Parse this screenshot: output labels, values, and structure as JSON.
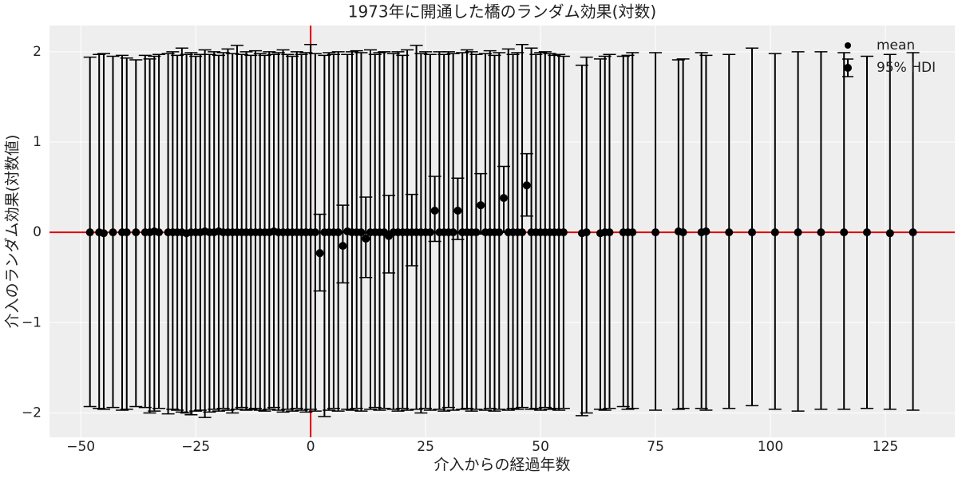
{
  "chart_data": {
    "type": "errorbar",
    "title": "1973年に開通した橋のランダム効果(対数)",
    "xlabel": "介入からの経過年数",
    "ylabel": "介入のランダム効果(対数値)",
    "xlim": [
      -56.8,
      140.1
    ],
    "ylim": [
      -2.27,
      2.29
    ],
    "xticks": [
      {
        "value": -50,
        "label": "−50"
      },
      {
        "value": -25,
        "label": "−25"
      },
      0,
      25,
      50,
      75,
      100,
      125
    ],
    "yticks": [
      {
        "value": -2,
        "label": "−2"
      },
      {
        "value": -1,
        "label": "−1"
      },
      0,
      1,
      2
    ],
    "grid": true,
    "legend": "upper right",
    "reference_lines": {
      "color": "#e00000",
      "x": 0,
      "y": 0
    },
    "x": [
      -48,
      -46,
      -45,
      -43,
      -41,
      -40,
      -38,
      -36,
      -35,
      -34,
      -33,
      -31,
      -30,
      -29,
      -28,
      -27,
      -26,
      -25,
      -24,
      -23,
      -22,
      -21,
      -20,
      -19,
      -18,
      -17,
      -16,
      -15,
      -14,
      -13,
      -12,
      -11,
      -10,
      -9,
      -8,
      -7,
      -6,
      -5,
      -4,
      -3,
      -2,
      -1,
      0,
      1,
      2,
      3,
      4,
      5,
      6,
      7,
      8,
      9,
      10,
      11,
      12,
      13,
      14,
      15,
      16,
      17,
      18,
      19,
      20,
      21,
      22,
      23,
      24,
      25,
      26,
      27,
      28,
      29,
      30,
      31,
      32,
      33,
      34,
      35,
      36,
      37,
      38,
      39,
      40,
      41,
      42,
      43,
      44,
      45,
      46,
      47,
      48,
      49,
      50,
      51,
      52,
      53,
      54,
      55,
      59,
      60,
      63,
      64,
      65,
      68,
      69,
      70,
      75,
      80,
      81,
      85,
      86,
      91,
      96,
      101,
      106,
      111,
      116,
      121,
      126,
      131
    ],
    "series": [
      {
        "name": "mean",
        "color": "#000000",
        "values": [
          0,
          0,
          -0.01,
          0,
          0,
          0,
          0,
          0,
          0,
          0.01,
          0,
          0,
          0,
          0,
          0,
          -0.01,
          0,
          0,
          0,
          0.01,
          0,
          0,
          0.01,
          0,
          0,
          0,
          0,
          0,
          0,
          0,
          0,
          0,
          0,
          0,
          0.01,
          0,
          0,
          0,
          0,
          0,
          0,
          0,
          0,
          0,
          -0.23,
          0,
          0,
          0,
          0,
          -0.15,
          0.01,
          0,
          0,
          0,
          -0.07,
          0,
          0,
          0,
          0,
          -0.04,
          0,
          0,
          0,
          0,
          0,
          0,
          0,
          0,
          0,
          0.24,
          0,
          0,
          0,
          0,
          0.24,
          0,
          0,
          0,
          0,
          0.3,
          0,
          0,
          0,
          0,
          0.38,
          0,
          0,
          0,
          0,
          0.52,
          0,
          0,
          0,
          0,
          0,
          0,
          0,
          0,
          -0.01,
          0,
          -0.01,
          0,
          0,
          0,
          0,
          0,
          0,
          0.01,
          0,
          0,
          0.01,
          0,
          0,
          0,
          0,
          0,
          0,
          0,
          -0.01,
          0
        ]
      }
    ],
    "intervals": {
      "name": "95% HDI",
      "color": "#000000",
      "lower": [
        -1.93,
        -1.95,
        -1.96,
        -1.94,
        -1.97,
        -1.96,
        -1.93,
        -1.94,
        -2.0,
        -1.98,
        -1.95,
        -2.01,
        -1.96,
        -1.97,
        -1.99,
        -2.0,
        -2.02,
        -1.98,
        -1.97,
        -2.05,
        -1.99,
        -1.96,
        -1.98,
        -1.95,
        -1.97,
        -2.0,
        -1.96,
        -1.94,
        -1.97,
        -1.96,
        -1.95,
        -1.97,
        -1.98,
        -1.96,
        -1.94,
        -1.97,
        -1.99,
        -1.96,
        -1.98,
        -1.95,
        -1.97,
        -1.99,
        -1.96,
        -1.98,
        -0.65,
        -2.04,
        -1.97,
        -1.95,
        -1.98,
        -0.56,
        -1.96,
        -1.97,
        -1.95,
        -1.98,
        -0.5,
        -1.96,
        -1.94,
        -1.97,
        -1.95,
        -0.45,
        -1.96,
        -1.98,
        -1.95,
        -1.97,
        -0.37,
        -1.96,
        -2.0,
        -1.95,
        -1.97,
        -0.1,
        -1.96,
        -1.98,
        -1.94,
        -1.97,
        -0.08,
        -1.96,
        -1.95,
        -1.98,
        -1.96,
        -0.02,
        -1.97,
        -1.95,
        -1.98,
        -1.96,
        0,
        -1.97,
        -1.95,
        -1.96,
        -1.94,
        0.18,
        -1.96,
        -1.95,
        -1.97,
        -1.94,
        -1.96,
        -1.95,
        -1.97,
        -1.95,
        -2.03,
        -2.0,
        -1.96,
        -1.97,
        -1.95,
        -1.93,
        -1.96,
        -1.95,
        -1.97,
        -1.96,
        -1.95,
        -1.95,
        -1.97,
        -1.95,
        -1.92,
        -1.96,
        -1.98,
        -1.96,
        -1.96,
        -1.95,
        -1.96,
        -1.97
      ],
      "upper": [
        1.94,
        1.97,
        1.98,
        1.95,
        1.96,
        1.93,
        1.91,
        1.96,
        1.92,
        1.95,
        1.97,
        1.98,
        2.0,
        1.96,
        2.04,
        1.97,
        1.99,
        1.95,
        1.97,
        2.02,
        1.97,
        2.0,
        1.96,
        1.99,
        2.03,
        1.98,
        2.07,
        1.97,
        2.0,
        1.96,
        2.01,
        1.98,
        1.96,
        2.0,
        1.97,
        1.99,
        2.02,
        1.97,
        1.95,
        2.0,
        1.97,
        1.99,
        2.08,
        1.98,
        0.2,
        1.96,
        1.99,
        1.97,
        2.0,
        0.3,
        1.97,
        2.0,
        2.01,
        1.99,
        0.39,
        2.02,
        1.97,
        1.99,
        2.0,
        0.41,
        1.98,
        2.0,
        1.96,
        2.02,
        0.42,
        2.07,
        1.98,
        2.0,
        1.97,
        0.62,
        2.0,
        1.97,
        2.0,
        1.98,
        0.6,
        1.99,
        2.02,
        2.0,
        1.97,
        0.65,
        1.98,
        2.01,
        1.96,
        1.99,
        0.73,
        2.03,
        1.97,
        1.99,
        2.08,
        0.87,
        2.04,
        1.97,
        1.99,
        2.0,
        1.98,
        1.96,
        1.97,
        1.95,
        1.85,
        1.94,
        1.92,
        1.95,
        1.97,
        1.95,
        1.96,
        1.99,
        1.99,
        1.91,
        1.92,
        1.99,
        1.96,
        1.97,
        2.04,
        1.98,
        2.0,
        2.0,
        1.99,
        1.95,
        1.97,
        1.99
      ]
    }
  }
}
